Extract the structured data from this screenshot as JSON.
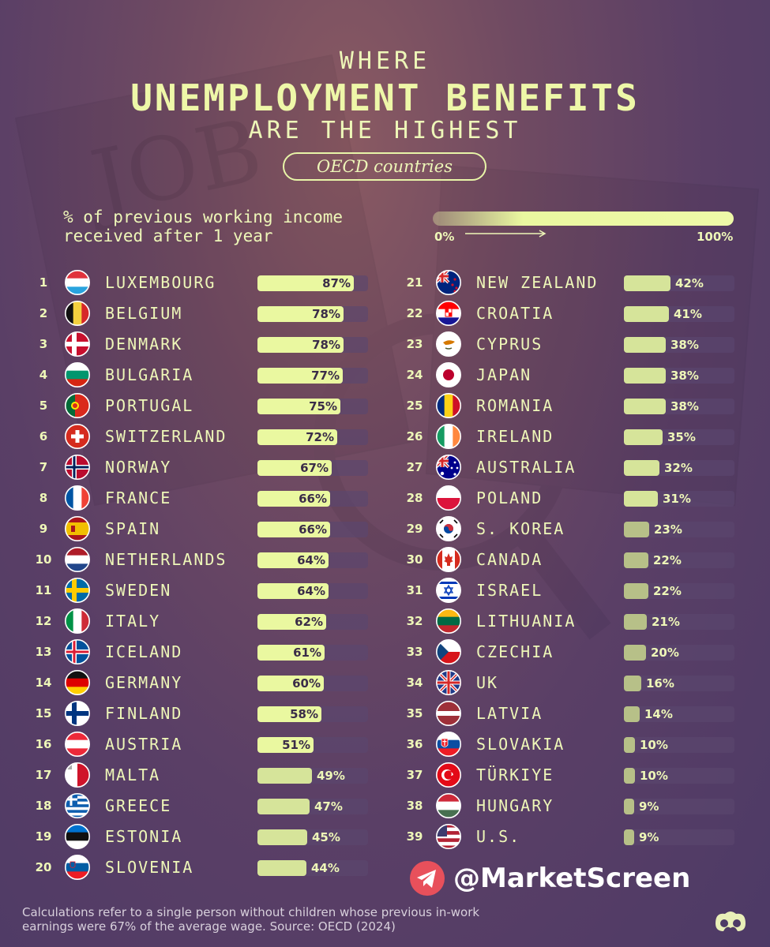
{
  "header": {
    "title_top": "WHERE",
    "title_main": "UNEMPLOYMENT BENEFITS",
    "title_bottom": "ARE THE HIGHEST",
    "subtitle": "OECD countries"
  },
  "legend": {
    "description": "% of previous working income\nreceived after 1 year",
    "min_label": "0%",
    "max_label": "100%"
  },
  "chart_data": {
    "type": "bar",
    "title": "UNEMPLOYMENT BENEFITS",
    "value_unit": "%",
    "ylim": [
      0,
      100
    ],
    "categories": [
      "LUXEMBOURG",
      "BELGIUM",
      "DENMARK",
      "BULGARIA",
      "PORTUGAL",
      "SWITZERLAND",
      "NORWAY",
      "FRANCE",
      "SPAIN",
      "NETHERLANDS",
      "SWEDEN",
      "ITALY",
      "ICELAND",
      "GERMANY",
      "FINLAND",
      "AUSTRIA",
      "MALTA",
      "GREECE",
      "ESTONIA",
      "SLOVENIA",
      "NEW ZEALAND",
      "CROATIA",
      "CYPRUS",
      "JAPAN",
      "ROMANIA",
      "IRELAND",
      "AUSTRALIA",
      "POLAND",
      "S. KOREA",
      "CANADA",
      "ISRAEL",
      "LITHUANIA",
      "CZECHIA",
      "UK",
      "LATVIA",
      "SLOVAKIA",
      "TÜRKIYE",
      "HUNGARY",
      "U.S."
    ],
    "values": [
      87,
      78,
      78,
      77,
      75,
      72,
      67,
      66,
      66,
      64,
      64,
      62,
      61,
      60,
      58,
      51,
      49,
      47,
      45,
      44,
      42,
      41,
      38,
      38,
      38,
      35,
      32,
      31,
      23,
      22,
      22,
      21,
      20,
      16,
      14,
      10,
      10,
      9,
      9
    ],
    "rows": [
      {
        "rank": "1",
        "country": "LUXEMBOURG",
        "value": 87,
        "label": "87%",
        "flag": "luxembourg-flag"
      },
      {
        "rank": "2",
        "country": "BELGIUM",
        "value": 78,
        "label": "78%",
        "flag": "belgium-flag"
      },
      {
        "rank": "3",
        "country": "DENMARK",
        "value": 78,
        "label": "78%",
        "flag": "denmark-flag"
      },
      {
        "rank": "4",
        "country": "BULGARIA",
        "value": 77,
        "label": "77%",
        "flag": "bulgaria-flag"
      },
      {
        "rank": "5",
        "country": "PORTUGAL",
        "value": 75,
        "label": "75%",
        "flag": "portugal-flag"
      },
      {
        "rank": "6",
        "country": "SWITZERLAND",
        "value": 72,
        "label": "72%",
        "flag": "switzerland-flag"
      },
      {
        "rank": "7",
        "country": "NORWAY",
        "value": 67,
        "label": "67%",
        "flag": "norway-flag"
      },
      {
        "rank": "8",
        "country": "FRANCE",
        "value": 66,
        "label": "66%",
        "flag": "france-flag"
      },
      {
        "rank": "9",
        "country": "SPAIN",
        "value": 66,
        "label": "66%",
        "flag": "spain-flag"
      },
      {
        "rank": "10",
        "country": "NETHERLANDS",
        "value": 64,
        "label": "64%",
        "flag": "netherlands-flag"
      },
      {
        "rank": "11",
        "country": "SWEDEN",
        "value": 64,
        "label": "64%",
        "flag": "sweden-flag"
      },
      {
        "rank": "12",
        "country": "ITALY",
        "value": 62,
        "label": "62%",
        "flag": "italy-flag"
      },
      {
        "rank": "13",
        "country": "ICELAND",
        "value": 61,
        "label": "61%",
        "flag": "iceland-flag"
      },
      {
        "rank": "14",
        "country": "GERMANY",
        "value": 60,
        "label": "60%",
        "flag": "germany-flag"
      },
      {
        "rank": "15",
        "country": "FINLAND",
        "value": 58,
        "label": "58%",
        "flag": "finland-flag"
      },
      {
        "rank": "16",
        "country": "AUSTRIA",
        "value": 51,
        "label": "51%",
        "flag": "austria-flag"
      },
      {
        "rank": "17",
        "country": "MALTA",
        "value": 49,
        "label": "49%",
        "flag": "malta-flag"
      },
      {
        "rank": "18",
        "country": "GREECE",
        "value": 47,
        "label": "47%",
        "flag": "greece-flag"
      },
      {
        "rank": "19",
        "country": "ESTONIA",
        "value": 45,
        "label": "45%",
        "flag": "estonia-flag"
      },
      {
        "rank": "20",
        "country": "SLOVENIA",
        "value": 44,
        "label": "44%",
        "flag": "slovenia-flag"
      },
      {
        "rank": "21",
        "country": "NEW ZEALAND",
        "value": 42,
        "label": "42%",
        "flag": "new-zealand-flag"
      },
      {
        "rank": "22",
        "country": "CROATIA",
        "value": 41,
        "label": "41%",
        "flag": "croatia-flag"
      },
      {
        "rank": "23",
        "country": "CYPRUS",
        "value": 38,
        "label": "38%",
        "flag": "cyprus-flag"
      },
      {
        "rank": "24",
        "country": "JAPAN",
        "value": 38,
        "label": "38%",
        "flag": "japan-flag"
      },
      {
        "rank": "25",
        "country": "ROMANIA",
        "value": 38,
        "label": "38%",
        "flag": "romania-flag"
      },
      {
        "rank": "26",
        "country": "IRELAND",
        "value": 35,
        "label": "35%",
        "flag": "ireland-flag"
      },
      {
        "rank": "27",
        "country": "AUSTRALIA",
        "value": 32,
        "label": "32%",
        "flag": "australia-flag"
      },
      {
        "rank": "28",
        "country": "POLAND",
        "value": 31,
        "label": "31%",
        "flag": "poland-flag"
      },
      {
        "rank": "29",
        "country": "S. KOREA",
        "value": 23,
        "label": "23%",
        "flag": "south-korea-flag"
      },
      {
        "rank": "30",
        "country": "CANADA",
        "value": 22,
        "label": "22%",
        "flag": "canada-flag"
      },
      {
        "rank": "31",
        "country": "ISRAEL",
        "value": 22,
        "label": "22%",
        "flag": "israel-flag"
      },
      {
        "rank": "32",
        "country": "LITHUANIA",
        "value": 21,
        "label": "21%",
        "flag": "lithuania-flag"
      },
      {
        "rank": "33",
        "country": "CZECHIA",
        "value": 20,
        "label": "20%",
        "flag": "czechia-flag"
      },
      {
        "rank": "34",
        "country": "UK",
        "value": 16,
        "label": "16%",
        "flag": "uk-flag"
      },
      {
        "rank": "35",
        "country": "LATVIA",
        "value": 14,
        "label": "14%",
        "flag": "latvia-flag"
      },
      {
        "rank": "36",
        "country": "SLOVAKIA",
        "value": 10,
        "label": "10%",
        "flag": "slovakia-flag"
      },
      {
        "rank": "37",
        "country": "TÜRKIYE",
        "value": 10,
        "label": "10%",
        "flag": "turkiye-flag"
      },
      {
        "rank": "38",
        "country": "HUNGARY",
        "value": 9,
        "label": "9%",
        "flag": "hungary-flag"
      },
      {
        "rank": "39",
        "country": "U.S.",
        "value": 9,
        "label": "9%",
        "flag": "us-flag"
      }
    ],
    "colors": {
      "bar_high": "#eaf8a0",
      "bar_low": "#b7c088",
      "track": "#5a466e",
      "text": "#eef7b8"
    }
  },
  "footer": {
    "note": "Calculations refer to a single person without children whose previous in-work earnings were 67% of the average wage. Source: OECD (2024)"
  },
  "promo": {
    "handle": "@MarketScreen",
    "icon": "telegram-icon"
  },
  "brand": {
    "logo": "visual-capitalist-logo"
  }
}
